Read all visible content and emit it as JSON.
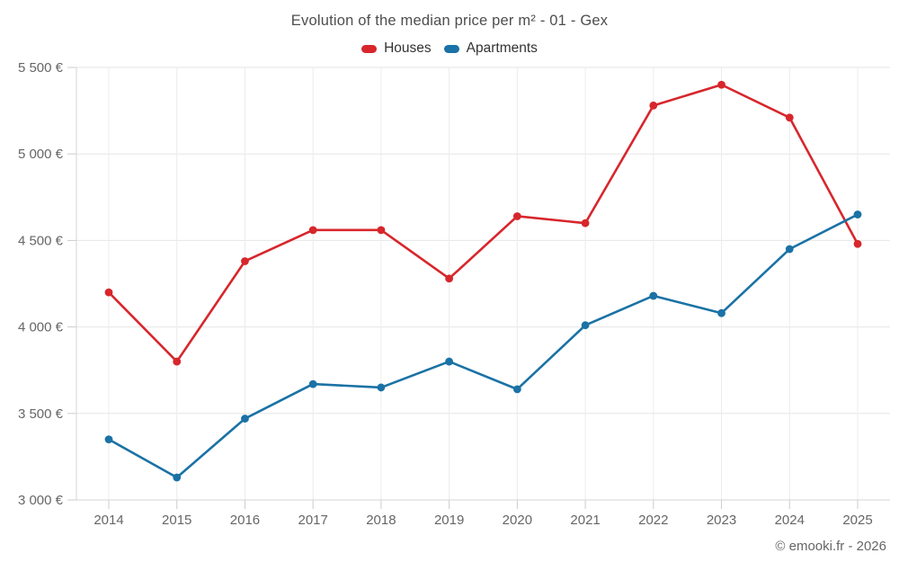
{
  "chart_data": {
    "type": "line",
    "title": "Evolution of the median price per m² - 01 - Gex",
    "categories": [
      "2014",
      "2015",
      "2016",
      "2017",
      "2018",
      "2019",
      "2020",
      "2021",
      "2022",
      "2023",
      "2024",
      "2025"
    ],
    "series": [
      {
        "name": "Houses",
        "color": "#d7262c",
        "values": [
          4200,
          3800,
          4380,
          4560,
          4560,
          4280,
          4640,
          4600,
          5280,
          5400,
          5210,
          4480
        ]
      },
      {
        "name": "Apartments",
        "color": "#1a72a5",
        "values": [
          3350,
          3130,
          3470,
          3670,
          3650,
          3800,
          3640,
          4010,
          4180,
          4080,
          4450,
          4650
        ]
      }
    ],
    "xlabel": "",
    "ylabel": "",
    "ylim": [
      3000,
      5500
    ],
    "ytick_step": 500,
    "ytick_labels": [
      "3 000 €",
      "3 500 €",
      "4 000 €",
      "4 500 €",
      "5 000 €",
      "5 500 €"
    ],
    "grid": true,
    "legend_position": "top",
    "colors": {
      "grid_horizontal": "#e6e6e6",
      "grid_vertical": "#ececec",
      "axis_line": "#d4d4d4",
      "tick": "#cccccc",
      "axis_label": "#666666",
      "title": "#4e4e4e",
      "legend_text": "#333333"
    }
  },
  "footer": {
    "credits": "© emooki.fr - 2026"
  }
}
